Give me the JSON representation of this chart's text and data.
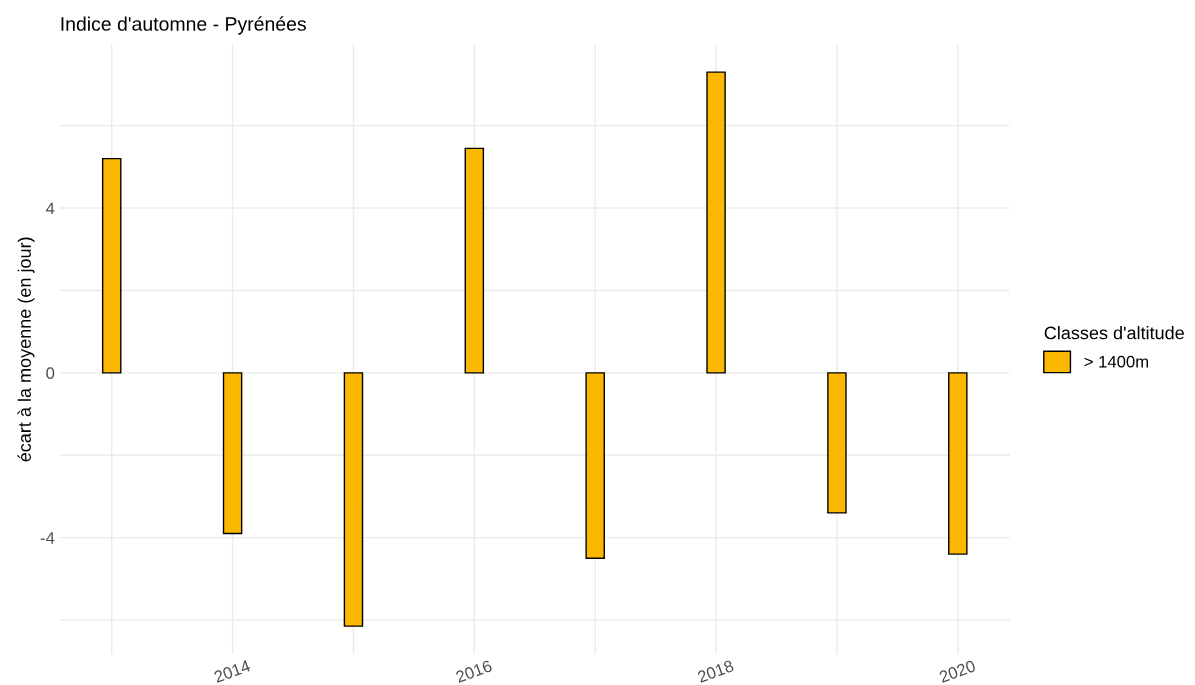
{
  "chart_data": {
    "type": "bar",
    "title": "Indice d'automne - Pyrénées",
    "ylabel": "écart à la moyenne (en jour)",
    "legend_title": "Classes d'altitude",
    "x": [
      2013,
      2014,
      2015,
      2016,
      2017,
      2018,
      2019,
      2020
    ],
    "series": [
      {
        "name": "> 1400m",
        "color": "#fcb800",
        "values": [
          5.2,
          -3.9,
          -6.15,
          5.45,
          -4.5,
          7.3,
          -3.4,
          -4.4
        ]
      }
    ],
    "xlim": [
      2012.57,
      2020.43
    ],
    "ylim": [
      -6.83,
      7.97
    ],
    "xticks": [
      {
        "value": 2013,
        "label": null
      },
      2014,
      {
        "value": 2015,
        "label": null
      },
      2016,
      {
        "value": 2017,
        "label": null
      },
      2018,
      {
        "value": 2019,
        "label": null
      },
      2020
    ],
    "yticks": [
      {
        "value": -6,
        "label": null
      },
      -4,
      {
        "value": -2,
        "label": null
      },
      0,
      {
        "value": 2,
        "label": null
      },
      4,
      {
        "value": 6,
        "label": null
      }
    ],
    "grid": true,
    "legend": "right"
  }
}
